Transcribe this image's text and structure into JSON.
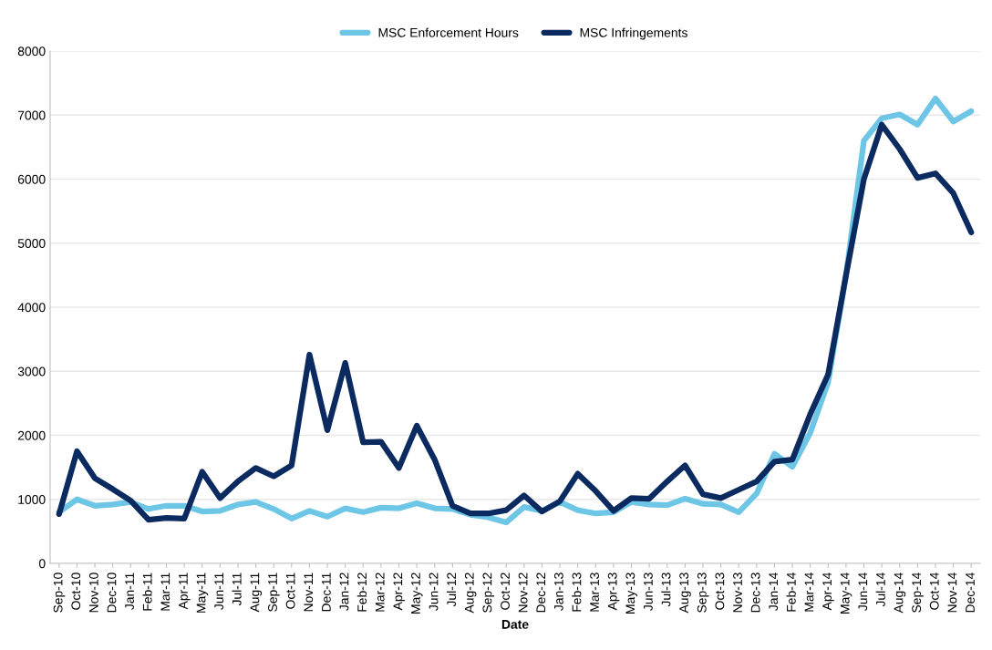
{
  "chart_data": {
    "type": "line",
    "xlabel": "Date",
    "categories": [
      "Sep-10",
      "Oct-10",
      "Nov-10",
      "Dec-10",
      "Jan-11",
      "Feb-11",
      "Mar-11",
      "Apr-11",
      "May-11",
      "Jun-11",
      "Jul-11",
      "Aug-11",
      "Sep-11",
      "Oct-11",
      "Nov-11",
      "Dec-11",
      "Jan-12",
      "Feb-12",
      "Mar-12",
      "Apr-12",
      "May-12",
      "Jun-12",
      "Jul-12",
      "Aug-12",
      "Sep-12",
      "Oct-12",
      "Nov-12",
      "Dec-12",
      "Jan-13",
      "Feb-13",
      "Mar-13",
      "Apr-13",
      "May-13",
      "Jun-13",
      "Jul-13",
      "Aug-13",
      "Sep-13",
      "Oct-13",
      "Nov-13",
      "Dec-13",
      "Jan-14",
      "Feb-14",
      "Mar-14",
      "Apr-14",
      "May-14",
      "Jun-14",
      "Jul-14",
      "Aug-14",
      "Sep-14",
      "Oct-14",
      "Nov-14",
      "Dec-14"
    ],
    "series": [
      {
        "name": "MSC Enforcement Hours",
        "color": "#6ec6e6",
        "values": [
          800,
          1000,
          900,
          920,
          960,
          850,
          900,
          900,
          810,
          820,
          920,
          960,
          850,
          700,
          820,
          730,
          860,
          800,
          870,
          860,
          940,
          860,
          850,
          760,
          720,
          640,
          880,
          820,
          960,
          830,
          780,
          800,
          960,
          920,
          910,
          1010,
          930,
          920,
          800,
          1090,
          1710,
          1510,
          2040,
          2830,
          4500,
          6600,
          6950,
          7010,
          6850,
          7260,
          6900,
          7060
        ]
      },
      {
        "name": "MSC Infringements",
        "color": "#0a2a60",
        "values": [
          770,
          1750,
          1330,
          1160,
          980,
          680,
          710,
          700,
          1430,
          1020,
          1280,
          1490,
          1360,
          1530,
          3260,
          2080,
          3130,
          1890,
          1900,
          1490,
          2150,
          1620,
          900,
          780,
          780,
          830,
          1060,
          810,
          970,
          1400,
          1130,
          820,
          1020,
          1010,
          1280,
          1530,
          1080,
          1020,
          1150,
          1280,
          1590,
          1620,
          2330,
          2950,
          4500,
          6000,
          6850,
          6470,
          6020,
          6090,
          5780,
          5170
        ]
      }
    ],
    "ylim": [
      0,
      8000
    ],
    "yticks": [
      0,
      1000,
      2000,
      3000,
      4000,
      5000,
      6000,
      7000,
      8000
    ],
    "grid": "y",
    "legend": "top",
    "line_style": "solid",
    "marker": "none"
  }
}
